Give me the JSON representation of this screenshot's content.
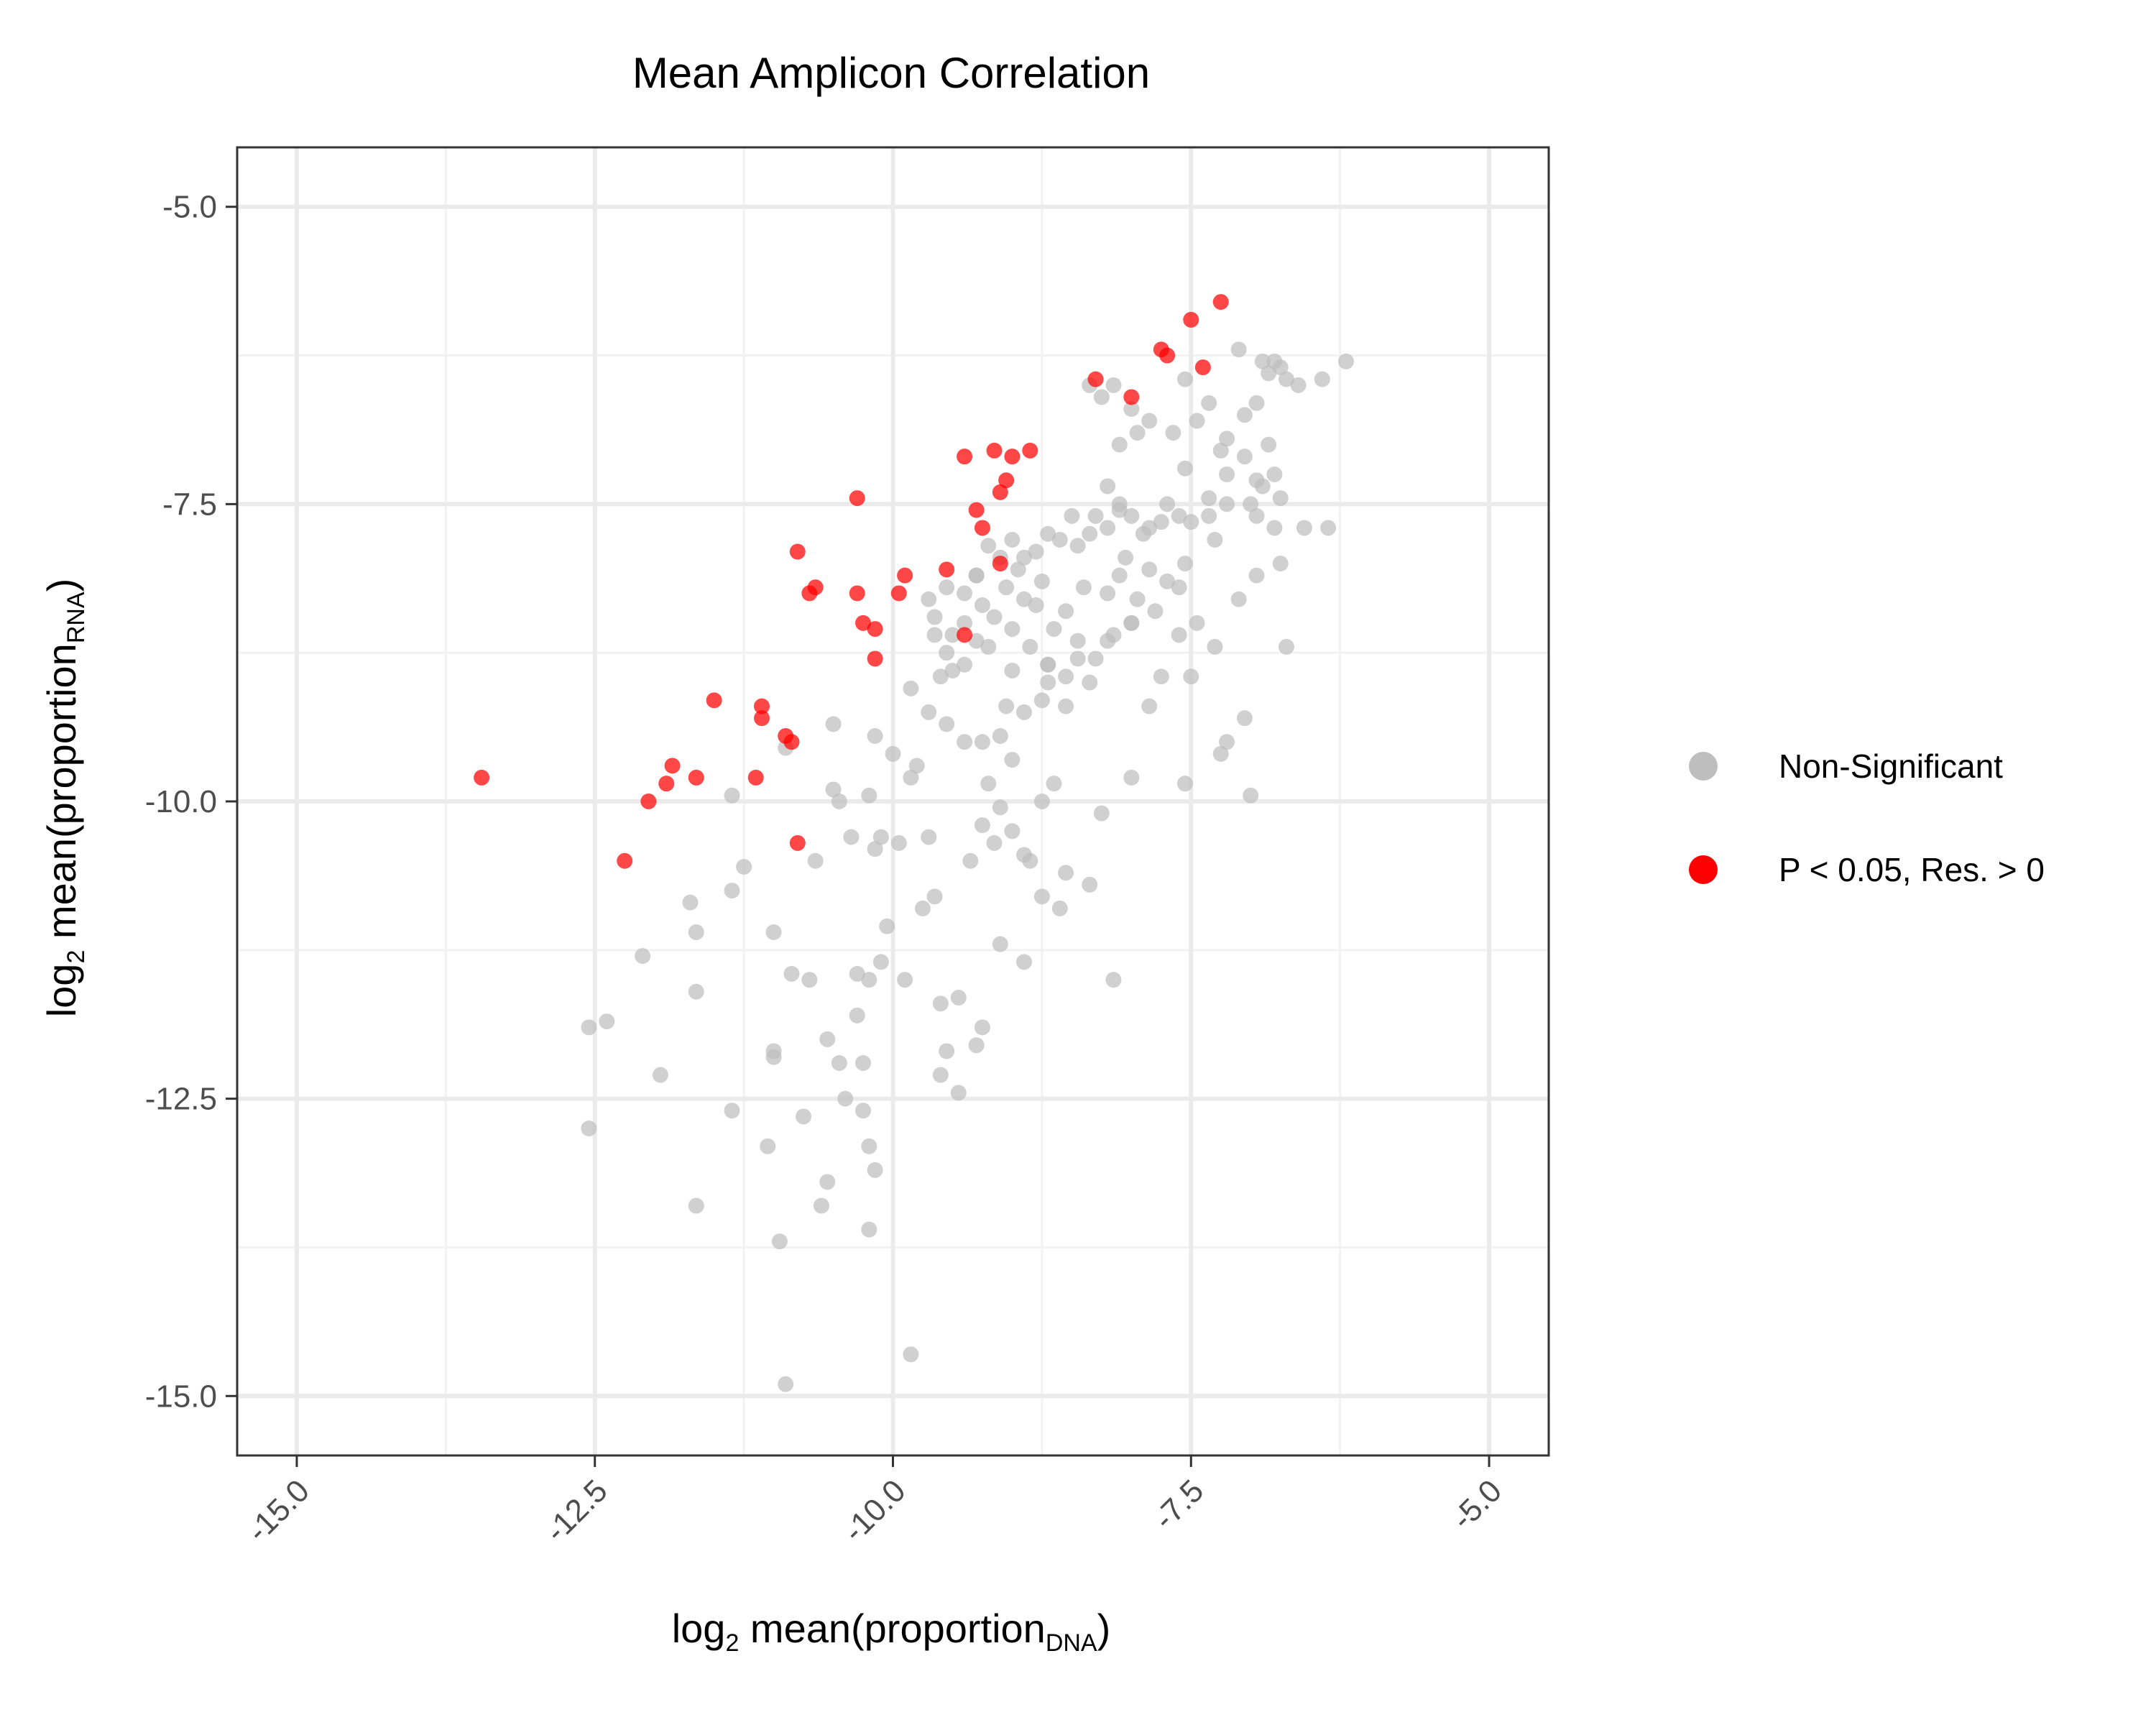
{
  "chart_data": {
    "type": "scatter",
    "title": "Mean Amplicon Correlation",
    "xlabel": {
      "prefix": "log",
      "base": "2",
      "text": " mean(proportion",
      "sub": "DNA",
      "suffix": ")"
    },
    "ylabel": {
      "prefix": "log",
      "base": "2",
      "text": " mean(proportion",
      "sub": "RNA",
      "suffix": ")"
    },
    "xlim": [
      -15.5,
      -4.5
    ],
    "ylim": [
      -15.5,
      -4.5
    ],
    "xticks": [
      -15.0,
      -12.5,
      -10.0,
      -7.5,
      -5.0
    ],
    "xtick_labels": [
      "-15.0",
      "-12.5",
      "-10.0",
      "-7.5",
      "-5.0"
    ],
    "yticks": [
      -5.0,
      -7.5,
      -10.0,
      -12.5,
      -15.0
    ],
    "ytick_labels": [
      "-5.0",
      "-7.5",
      "-10.0",
      "-12.5",
      "-15.0"
    ],
    "grid": true,
    "legend_position": "right",
    "series": [
      {
        "name": "Non-Significant",
        "color": "#bebebe",
        "points": [
          [
            -7.1,
            -6.2
          ],
          [
            -6.9,
            -6.3
          ],
          [
            -6.85,
            -6.4
          ],
          [
            -6.8,
            -6.3
          ],
          [
            -6.75,
            -6.35
          ],
          [
            -6.7,
            -6.45
          ],
          [
            -6.6,
            -6.5
          ],
          [
            -6.4,
            -6.45
          ],
          [
            -6.2,
            -6.3
          ],
          [
            -6.95,
            -6.65
          ],
          [
            -7.05,
            -6.75
          ],
          [
            -7.2,
            -6.95
          ],
          [
            -7.35,
            -6.65
          ],
          [
            -7.45,
            -6.8
          ],
          [
            -7.55,
            -6.45
          ],
          [
            -7.55,
            -7.2
          ],
          [
            -7.65,
            -6.9
          ],
          [
            -7.85,
            -6.8
          ],
          [
            -8.0,
            -6.7
          ],
          [
            -8.15,
            -6.5
          ],
          [
            -8.25,
            -6.6
          ],
          [
            -8.35,
            -6.5
          ],
          [
            -8.1,
            -7.0
          ],
          [
            -7.95,
            -6.9
          ],
          [
            -7.25,
            -7.05
          ],
          [
            -7.05,
            -7.1
          ],
          [
            -6.85,
            -7.0
          ],
          [
            -6.8,
            -7.25
          ],
          [
            -6.9,
            -7.35
          ],
          [
            -7.0,
            -7.5
          ],
          [
            -7.2,
            -7.5
          ],
          [
            -7.35,
            -7.6
          ],
          [
            -7.6,
            -7.6
          ],
          [
            -7.75,
            -7.65
          ],
          [
            -7.85,
            -7.7
          ],
          [
            -8.0,
            -7.6
          ],
          [
            -8.1,
            -7.5
          ],
          [
            -8.2,
            -7.7
          ],
          [
            -8.35,
            -7.75
          ],
          [
            -8.5,
            -7.6
          ],
          [
            -8.6,
            -7.8
          ],
          [
            -8.8,
            -7.9
          ],
          [
            -8.95,
            -8.05
          ],
          [
            -9.1,
            -7.95
          ],
          [
            -9.3,
            -8.1
          ],
          [
            -9.4,
            -8.25
          ],
          [
            -9.65,
            -8.45
          ],
          [
            -9.5,
            -8.6
          ],
          [
            -9.2,
            -8.7
          ],
          [
            -9.0,
            -8.55
          ],
          [
            -8.85,
            -8.7
          ],
          [
            -8.7,
            -8.85
          ],
          [
            -8.55,
            -8.95
          ],
          [
            -8.3,
            -8.8
          ],
          [
            -8.15,
            -8.6
          ],
          [
            -8.0,
            -8.5
          ],
          [
            -7.8,
            -8.4
          ],
          [
            -7.6,
            -8.6
          ],
          [
            -7.45,
            -8.5
          ],
          [
            -7.3,
            -8.7
          ],
          [
            -7.1,
            -8.3
          ],
          [
            -6.95,
            -8.1
          ],
          [
            -6.75,
            -8.0
          ],
          [
            -6.55,
            -7.7
          ],
          [
            -6.35,
            -7.7
          ],
          [
            -6.7,
            -8.7
          ],
          [
            -7.05,
            -9.3
          ],
          [
            -7.2,
            -9.5
          ],
          [
            -7.25,
            -9.6
          ],
          [
            -7.0,
            -9.95
          ],
          [
            -7.55,
            -9.85
          ],
          [
            -8.0,
            -9.8
          ],
          [
            -8.25,
            -10.1
          ],
          [
            -8.55,
            -10.6
          ],
          [
            -8.35,
            -10.7
          ],
          [
            -8.75,
            -10.8
          ],
          [
            -8.6,
            -10.9
          ],
          [
            -8.15,
            -11.5
          ],
          [
            -8.9,
            -11.35
          ],
          [
            -9.1,
            -11.2
          ],
          [
            -9.25,
            -11.9
          ],
          [
            -9.3,
            -12.05
          ],
          [
            -9.55,
            -12.1
          ],
          [
            -9.6,
            -12.3
          ],
          [
            -9.45,
            -12.45
          ],
          [
            -9.9,
            -11.5
          ],
          [
            -10.05,
            -11.05
          ],
          [
            -10.1,
            -11.35
          ],
          [
            -10.2,
            -11.5
          ],
          [
            -10.3,
            -11.8
          ],
          [
            -10.25,
            -12.2
          ],
          [
            -10.4,
            -12.5
          ],
          [
            -10.25,
            -12.6
          ],
          [
            -10.2,
            -12.9
          ],
          [
            -10.15,
            -13.1
          ],
          [
            -10.2,
            -13.6
          ],
          [
            -10.55,
            -13.2
          ],
          [
            -10.6,
            -13.4
          ],
          [
            -10.75,
            -12.65
          ],
          [
            -10.55,
            -12.0
          ],
          [
            -10.45,
            -12.2
          ],
          [
            -10.7,
            -11.5
          ],
          [
            -10.85,
            -11.45
          ],
          [
            -11.0,
            -12.1
          ],
          [
            -11.0,
            -12.15
          ],
          [
            -11.05,
            -12.9
          ],
          [
            -11.35,
            -12.6
          ],
          [
            -11.65,
            -13.4
          ],
          [
            -11.95,
            -12.3
          ],
          [
            -12.1,
            -11.3
          ],
          [
            -12.4,
            -11.85
          ],
          [
            -12.55,
            -11.9
          ],
          [
            -12.55,
            -12.75
          ],
          [
            -11.65,
            -11.1
          ],
          [
            -11.65,
            -11.6
          ],
          [
            -11.7,
            -10.85
          ],
          [
            -11.25,
            -10.55
          ],
          [
            -11.35,
            -10.75
          ],
          [
            -11.35,
            -9.95
          ],
          [
            -10.65,
            -10.5
          ],
          [
            -10.5,
            -9.9
          ],
          [
            -10.45,
            -10.0
          ],
          [
            -10.35,
            -10.3
          ],
          [
            -10.15,
            -10.4
          ],
          [
            -10.2,
            -9.95
          ],
          [
            -10.1,
            -10.3
          ],
          [
            -9.95,
            -10.35
          ],
          [
            -9.7,
            -10.3
          ],
          [
            -9.65,
            -10.8
          ],
          [
            -9.35,
            -10.5
          ],
          [
            -9.25,
            -10.2
          ],
          [
            -9.15,
            -10.35
          ],
          [
            -9.1,
            -10.05
          ],
          [
            -9.0,
            -10.25
          ],
          [
            -8.9,
            -10.45
          ],
          [
            -8.85,
            -10.5
          ],
          [
            -8.75,
            -10.0
          ],
          [
            -8.65,
            -9.85
          ],
          [
            -9.0,
            -9.65
          ],
          [
            -9.2,
            -9.85
          ],
          [
            -9.4,
            -9.5
          ],
          [
            -9.55,
            -9.35
          ],
          [
            -9.7,
            -9.25
          ],
          [
            -9.8,
            -9.7
          ],
          [
            -9.85,
            -9.8
          ],
          [
            -10.0,
            -9.6
          ],
          [
            -10.15,
            -9.45
          ],
          [
            -10.5,
            -9.35
          ],
          [
            -10.9,
            -9.55
          ],
          [
            -9.85,
            -9.05
          ],
          [
            -9.6,
            -8.95
          ],
          [
            -9.5,
            -8.9
          ],
          [
            -9.55,
            -8.75
          ],
          [
            -9.4,
            -8.5
          ],
          [
            -9.25,
            -8.35
          ],
          [
            -9.15,
            -8.45
          ],
          [
            -9.05,
            -8.2
          ],
          [
            -8.9,
            -8.3
          ],
          [
            -8.75,
            -8.15
          ],
          [
            -8.8,
            -8.35
          ],
          [
            -8.65,
            -8.55
          ],
          [
            -8.55,
            -8.4
          ],
          [
            -8.45,
            -8.65
          ],
          [
            -8.4,
            -8.2
          ],
          [
            -8.2,
            -8.25
          ],
          [
            -8.1,
            -8.1
          ],
          [
            -7.95,
            -8.3
          ],
          [
            -7.85,
            -8.05
          ],
          [
            -7.7,
            -8.15
          ],
          [
            -7.55,
            -8.0
          ],
          [
            -7.6,
            -8.2
          ],
          [
            -8.7,
            -9.0
          ],
          [
            -8.55,
            -9.2
          ],
          [
            -8.75,
            -9.15
          ],
          [
            -8.9,
            -9.25
          ],
          [
            -9.05,
            -9.2
          ],
          [
            -9.1,
            -9.45
          ],
          [
            -9.25,
            -9.5
          ],
          [
            -9.4,
            -8.85
          ],
          [
            -9.65,
            -8.6
          ],
          [
            -9.7,
            -8.3
          ],
          [
            -9.55,
            -8.2
          ],
          [
            -9.3,
            -8.1
          ],
          [
            -9.2,
            -7.85
          ],
          [
            -9.0,
            -7.8
          ],
          [
            -8.9,
            -7.95
          ],
          [
            -8.7,
            -7.75
          ],
          [
            -8.45,
            -7.85
          ],
          [
            -8.3,
            -7.6
          ],
          [
            -8.1,
            -7.55
          ],
          [
            -7.9,
            -7.75
          ],
          [
            -7.7,
            -7.5
          ],
          [
            -7.5,
            -7.65
          ],
          [
            -7.3,
            -7.8
          ],
          [
            -7.2,
            -7.25
          ],
          [
            -8.2,
            -7.35
          ],
          [
            -8.05,
            -7.95
          ],
          [
            -7.35,
            -7.45
          ],
          [
            -6.95,
            -7.6
          ],
          [
            -6.8,
            -7.7
          ],
          [
            -6.75,
            -7.45
          ],
          [
            -6.95,
            -7.3
          ],
          [
            -8.0,
            -8.5
          ],
          [
            -8.2,
            -8.65
          ],
          [
            -8.45,
            -8.8
          ],
          [
            -8.7,
            -8.85
          ],
          [
            -9.3,
            -8.65
          ],
          [
            -9.0,
            -8.9
          ],
          [
            -8.35,
            -9.0
          ],
          [
            -7.75,
            -8.95
          ],
          [
            -7.5,
            -8.95
          ],
          [
            -7.85,
            -9.2
          ],
          [
            -9.6,
            -11.7
          ],
          [
            -11.0,
            -11.1
          ],
          [
            -10.3,
            -11.45
          ],
          [
            -9.75,
            -10.9
          ],
          [
            -9.45,
            -11.65
          ],
          [
            -10.95,
            -13.7
          ],
          [
            -10.9,
            -14.9
          ],
          [
            -9.85,
            -14.65
          ]
        ]
      },
      {
        "name": "P < 0.05,  Res. > 0",
        "color": "#ff0000",
        "points": [
          [
            -7.25,
            -5.8
          ],
          [
            -7.5,
            -5.95
          ],
          [
            -7.75,
            -6.2
          ],
          [
            -7.7,
            -6.25
          ],
          [
            -7.4,
            -6.35
          ],
          [
            -8.0,
            -6.6
          ],
          [
            -8.3,
            -6.45
          ],
          [
            -8.85,
            -7.05
          ],
          [
            -9.0,
            -7.1
          ],
          [
            -9.05,
            -7.3
          ],
          [
            -9.1,
            -7.4
          ],
          [
            -9.15,
            -7.05
          ],
          [
            -9.4,
            -7.1
          ],
          [
            -9.3,
            -7.55
          ],
          [
            -9.25,
            -7.7
          ],
          [
            -9.1,
            -8.0
          ],
          [
            -9.55,
            -8.05
          ],
          [
            -9.9,
            -8.1
          ],
          [
            -9.95,
            -8.25
          ],
          [
            -10.3,
            -7.45
          ],
          [
            -10.3,
            -8.25
          ],
          [
            -10.25,
            -8.5
          ],
          [
            -10.15,
            -8.55
          ],
          [
            -10.15,
            -8.8
          ],
          [
            -10.65,
            -8.2
          ],
          [
            -10.7,
            -8.25
          ],
          [
            -10.8,
            -7.9
          ],
          [
            -9.4,
            -8.6
          ],
          [
            -11.5,
            -9.15
          ],
          [
            -11.1,
            -9.2
          ],
          [
            -11.1,
            -9.3
          ],
          [
            -10.9,
            -9.45
          ],
          [
            -10.85,
            -9.5
          ],
          [
            -11.65,
            -9.8
          ],
          [
            -11.85,
            -9.7
          ],
          [
            -11.9,
            -9.85
          ],
          [
            -12.05,
            -10.0
          ],
          [
            -11.15,
            -9.8
          ],
          [
            -10.8,
            -10.35
          ],
          [
            -12.25,
            -10.5
          ],
          [
            -13.45,
            -9.8
          ]
        ]
      }
    ]
  }
}
